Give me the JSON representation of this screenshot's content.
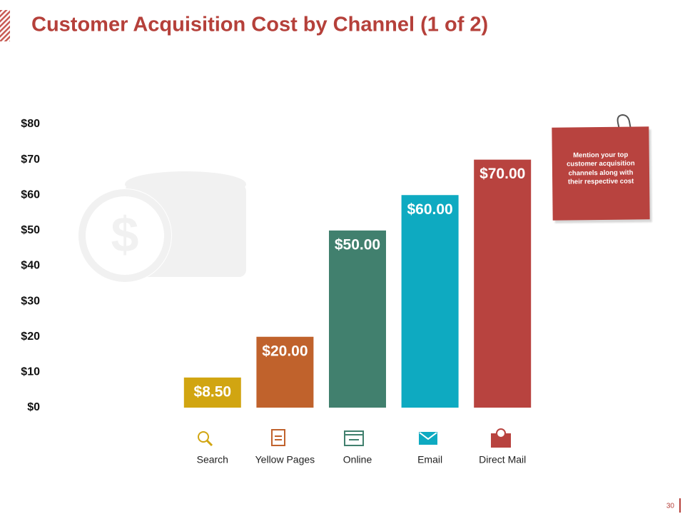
{
  "chart_data": {
    "type": "bar",
    "title": "Customer Acquisition Cost by Channel (1 of 2)",
    "categories": [
      "Search",
      "Yellow Pages",
      "Online",
      "Email",
      "Direct Mail"
    ],
    "values": [
      8.5,
      20,
      50,
      60,
      70
    ],
    "value_labels": [
      "$8.50",
      "$20.00",
      "$50.00",
      "$60.00",
      "$70.00"
    ],
    "colors": [
      "#d1a511",
      "#c0622c",
      "#41806e",
      "#0eaac1",
      "#b8433f"
    ],
    "ylim": [
      0,
      80
    ],
    "yticks": [
      {
        "value": 0,
        "label": "$0"
      },
      {
        "value": 10,
        "label": "$10"
      },
      {
        "value": 20,
        "label": "$20"
      },
      {
        "value": 30,
        "label": "$30"
      },
      {
        "value": 40,
        "label": "$40"
      },
      {
        "value": 50,
        "label": "$50"
      },
      {
        "value": 60,
        "label": "$60"
      },
      {
        "value": 70,
        "label": "$70"
      },
      {
        "value": 80,
        "label": "$80"
      }
    ],
    "grid": false,
    "annotation": "Mention your top customer acquisition channels along with their respective cost"
  },
  "page_number": "30"
}
